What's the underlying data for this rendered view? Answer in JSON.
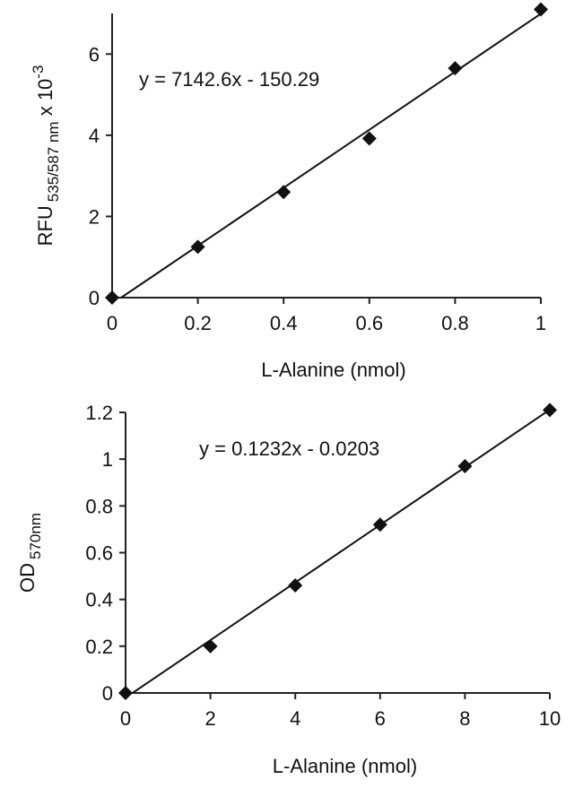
{
  "chart_data": [
    {
      "type": "scatter",
      "title": "",
      "xlabel": "L-Alanine (nmol)",
      "ylabel": {
        "main": "RFU",
        "subscript": "535/587 nm",
        "suffix": " x 10",
        "superscript": "-3"
      },
      "equation": "y = 7142.6x - 150.29",
      "xlim": [
        0,
        1
      ],
      "ylim": [
        0,
        7
      ],
      "x_ticks": [
        "0",
        "0.2",
        "0.4",
        "0.6",
        "0.8",
        "1"
      ],
      "y_ticks": [
        "0",
        "2",
        "4",
        "6"
      ],
      "series": [
        {
          "x": [
            0,
            0.2,
            0.4,
            0.6,
            0.8,
            1
          ],
          "y": [
            0,
            1.25,
            2.6,
            3.92,
            5.65,
            7.1
          ]
        }
      ],
      "trendline": {
        "slope": 7.1426,
        "intercept": -0.15029
      },
      "grid": false,
      "marker": "diamond"
    },
    {
      "type": "scatter",
      "title": "",
      "xlabel": "L-Alanine (nmol)",
      "ylabel": {
        "main": "OD",
        "subscript": "570nm",
        "suffix": "",
        "superscript": ""
      },
      "equation": "y = 0.1232x - 0.0203",
      "xlim": [
        0,
        10
      ],
      "ylim": [
        0,
        1.2
      ],
      "x_ticks": [
        "0",
        "2",
        "4",
        "6",
        "8",
        "10"
      ],
      "y_ticks": [
        "0",
        "0.2",
        "0.4",
        "0.6",
        "0.8",
        "1",
        "1.2"
      ],
      "series": [
        {
          "x": [
            0,
            2,
            4,
            6,
            8,
            10
          ],
          "y": [
            0,
            0.2,
            0.46,
            0.72,
            0.97,
            1.21
          ]
        }
      ],
      "trendline": {
        "slope": 0.1232,
        "intercept": -0.0203
      },
      "grid": false,
      "marker": "diamond"
    }
  ]
}
